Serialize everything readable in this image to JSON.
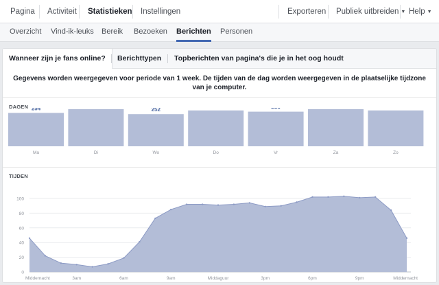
{
  "topnav": {
    "items": [
      "Pagina",
      "Activiteit",
      "Statistieken",
      "Instellingen"
    ],
    "right": [
      "Exporteren",
      "Publiek uitbreiden",
      "Help"
    ]
  },
  "subnav": {
    "items": [
      "Overzicht",
      "Vind-ik-leuks",
      "Bereik",
      "Bezoeken",
      "Berichten",
      "Personen"
    ]
  },
  "tabs": [
    "Wanneer zijn je fans online?",
    "Berichttypen",
    "Topberichten van pagina's die je in het oog houdt"
  ],
  "description": "Gegevens worden weergegeven voor periode van 1 week. De tijden van de dag worden weergegeven in de plaatselijke tijdzone van je computer.",
  "days_label": "DAGEN",
  "times_label": "TIJDEN",
  "colors": {
    "accent": "#4267b2",
    "fill": "#b3bdd7",
    "stroke": "#8d9bc5",
    "value_text": "#4b67a1"
  },
  "chart_data": [
    {
      "type": "bar",
      "title": "DAGEN",
      "categories": [
        "Ma",
        "Di",
        "Wo",
        "Do",
        "Vr",
        "Za",
        "Zo"
      ],
      "values": [
        254,
        260,
        252,
        258,
        256,
        260,
        258
      ]
    },
    {
      "type": "area",
      "title": "TIJDEN",
      "x": [
        0,
        1,
        2,
        3,
        4,
        5,
        6,
        7,
        8,
        9,
        10,
        11,
        12,
        13,
        14,
        15,
        16,
        17,
        18,
        19,
        20,
        21,
        22,
        23,
        24
      ],
      "y": [
        46,
        22,
        12,
        10,
        7,
        11,
        19,
        41,
        73,
        85,
        92,
        92,
        91,
        92,
        94,
        89,
        90,
        95,
        102,
        102,
        103,
        101,
        102,
        84,
        46
      ],
      "ylim": [
        0,
        100
      ],
      "yticks": [
        0,
        20,
        40,
        60,
        80,
        100
      ],
      "xtick_positions": [
        0,
        3,
        6,
        9,
        12,
        15,
        18,
        21,
        24
      ],
      "xtick_labels": [
        "Middernacht",
        "3am",
        "6am",
        "9am",
        "Middaguur",
        "3pm",
        "6pm",
        "9pm",
        "Middernacht"
      ]
    }
  ]
}
